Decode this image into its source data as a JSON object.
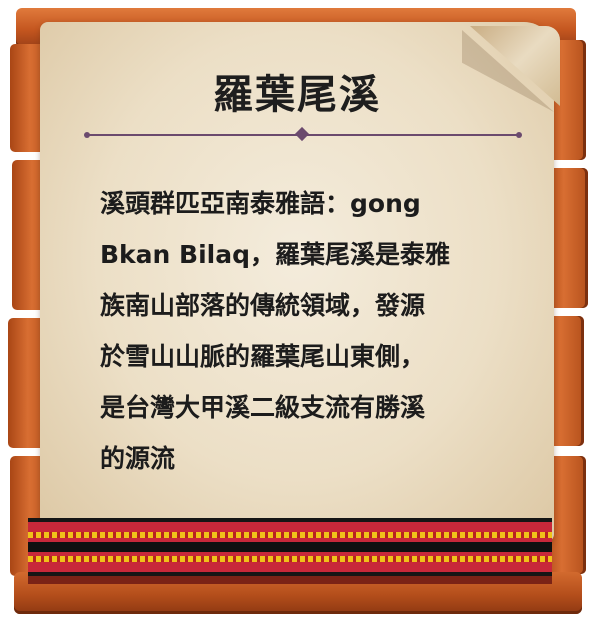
{
  "sign": {
    "title": "羅葉尾溪",
    "body": "溪頭群匹亞南泰雅語：gong\nBkan Bilaq，羅葉尾溪是泰雅\n族南山部落的傳統領域，發源\n於雪山山脈的羅葉尾山東側，\n是台灣大甲溪二級支流有勝溪\n的源流"
  },
  "colors": {
    "wood": "#c4561f",
    "parchment": "#ecdfc6",
    "divider": "#6b4a6e",
    "band_red": "#c8283a",
    "band_yellow": "#f0c21a",
    "band_black": "#101010"
  }
}
